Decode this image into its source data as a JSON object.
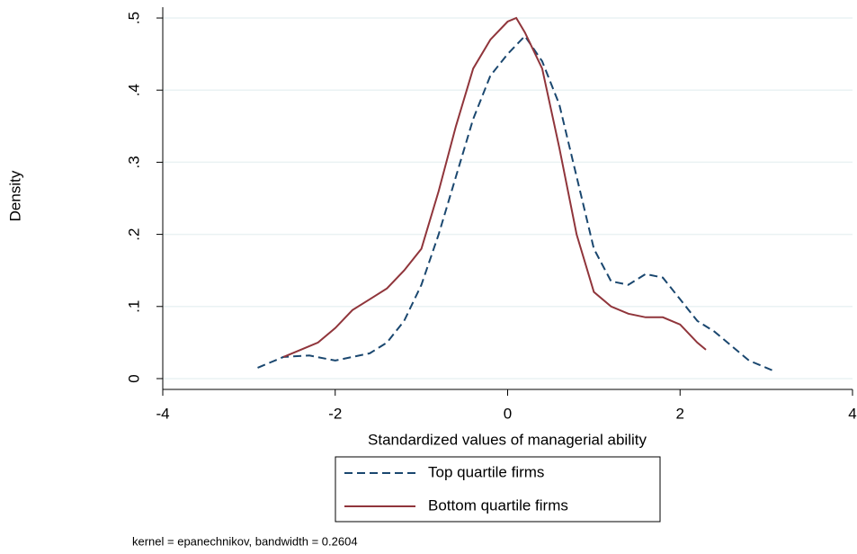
{
  "chart_data": {
    "type": "line",
    "xlabel": "Standardized values of managerial ability",
    "ylabel": "Density",
    "note": "kernel = epanechnikov, bandwidth = 0.2604",
    "xlim": [
      -4,
      4
    ],
    "xticks": [
      -4,
      -2,
      0,
      2,
      4
    ],
    "ylim": [
      -0.015,
      0.515
    ],
    "yticks": [
      0,
      {
        "value": 0.1,
        "label": ".1"
      },
      {
        "value": 0.2,
        "label": ".2"
      },
      {
        "value": 0.3,
        "label": ".3"
      },
      {
        "value": 0.4,
        "label": ".4"
      },
      {
        "value": 0.5,
        "label": ".5"
      }
    ],
    "grid": true,
    "legend": "bottom",
    "series": [
      {
        "name": "Top quartile firms",
        "color": "#1a476f",
        "dash": true,
        "x": [
          -2.9,
          -2.6,
          -2.3,
          -2.0,
          -1.8,
          -1.6,
          -1.4,
          -1.2,
          -1.0,
          -0.8,
          -0.6,
          -0.4,
          -0.2,
          0,
          0.2,
          0.4,
          0.6,
          0.8,
          1.0,
          1.2,
          1.4,
          1.6,
          1.8,
          2.0,
          2.2,
          2.4,
          2.6,
          2.8,
          3.0,
          3.1
        ],
        "values": [
          0.015,
          0.03,
          0.032,
          0.025,
          0.03,
          0.035,
          0.05,
          0.08,
          0.13,
          0.2,
          0.28,
          0.36,
          0.42,
          0.45,
          0.475,
          0.44,
          0.38,
          0.28,
          0.18,
          0.135,
          0.13,
          0.145,
          0.14,
          0.11,
          0.08,
          0.065,
          0.045,
          0.025,
          0.015,
          0.01
        ]
      },
      {
        "name": "Bottom quartile firms",
        "color": "#90353b",
        "dash": false,
        "x": [
          -2.6,
          -2.4,
          -2.2,
          -2.0,
          -1.8,
          -1.6,
          -1.4,
          -1.2,
          -1.0,
          -0.8,
          -0.6,
          -0.4,
          -0.2,
          0,
          0.1,
          0.2,
          0.4,
          0.6,
          0.8,
          1.0,
          1.2,
          1.4,
          1.6,
          1.8,
          2.0,
          2.2,
          2.3
        ],
        "values": [
          0.03,
          0.04,
          0.05,
          0.07,
          0.095,
          0.11,
          0.125,
          0.15,
          0.18,
          0.26,
          0.35,
          0.43,
          0.47,
          0.495,
          0.5,
          0.48,
          0.43,
          0.32,
          0.2,
          0.12,
          0.1,
          0.09,
          0.085,
          0.085,
          0.075,
          0.05,
          0.04
        ]
      }
    ]
  }
}
